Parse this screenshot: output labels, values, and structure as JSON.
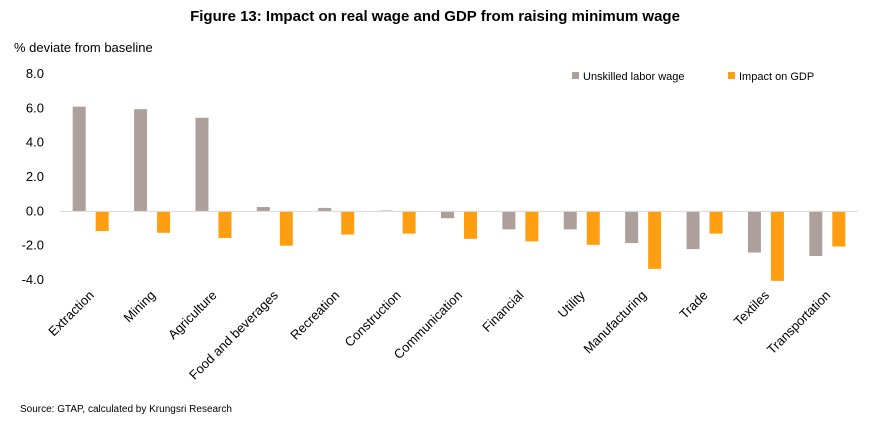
{
  "chart_data": {
    "type": "bar",
    "title": "Figure 13: Impact on real wage and GDP from raising minimum wage",
    "ylabel": "% deviate from baseline",
    "xlabel": "",
    "ylim": [
      -4.0,
      8.0
    ],
    "yticks": [
      -4.0,
      -2.0,
      0.0,
      2.0,
      4.0,
      6.0,
      8.0
    ],
    "ytick_labels": [
      "-4.0",
      "-2.0",
      "0.0",
      "2.0",
      "4.0",
      "6.0",
      "8.0"
    ],
    "grid": false,
    "legend_position": "top-right",
    "categories": [
      "Extraction",
      "Mining",
      "Agriculture",
      "Food and beverages",
      "Recreation",
      "Construction",
      "Communication",
      "Financial",
      "Utility",
      "Manufacturing",
      "Trade",
      "Textiles",
      "Transportation"
    ],
    "series": [
      {
        "name": "Unskilled labor wage",
        "color": "#ad9f9c",
        "values": [
          6.1,
          5.95,
          5.45,
          0.25,
          0.2,
          0.05,
          -0.4,
          -1.05,
          -1.05,
          -1.85,
          -2.2,
          -2.4,
          -2.6
        ]
      },
      {
        "name": "Impact on GDP",
        "color": "#ff9e10",
        "values": [
          -1.15,
          -1.25,
          -1.55,
          -2.0,
          -1.35,
          -1.3,
          -1.6,
          -1.75,
          -1.95,
          -3.35,
          -1.3,
          -4.05,
          -2.05
        ]
      }
    ]
  },
  "source": "Source: GTAP, calculated by Krungsri Research"
}
